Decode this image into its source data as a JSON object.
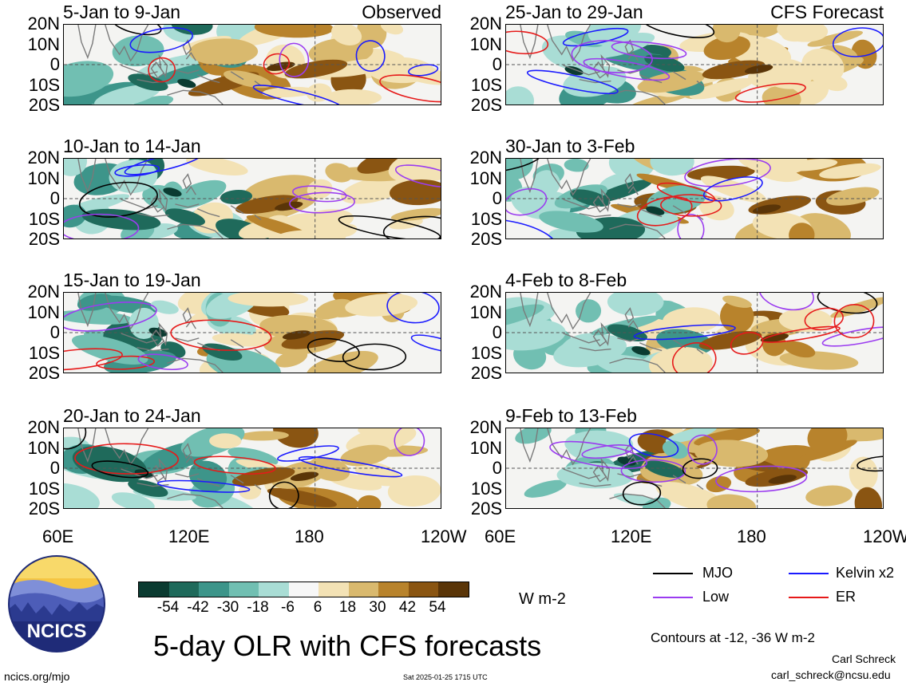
{
  "lat_labels": [
    "20N",
    "10N",
    "0",
    "10S",
    "20S"
  ],
  "lon_labels": [
    "60E",
    "120E",
    "180",
    "120W"
  ],
  "panels": [
    {
      "title": "5-Jan to 9-Jan",
      "tag": "Observed"
    },
    {
      "title": "25-Jan to 29-Jan",
      "tag": "CFS Forecast"
    },
    {
      "title": "10-Jan to 14-Jan",
      "tag": ""
    },
    {
      "title": "30-Jan to 3-Feb",
      "tag": ""
    },
    {
      "title": "15-Jan to 19-Jan",
      "tag": ""
    },
    {
      "title": "4-Feb to 8-Feb",
      "tag": ""
    },
    {
      "title": "20-Jan to 24-Jan",
      "tag": ""
    },
    {
      "title": "9-Feb to 13-Feb",
      "tag": ""
    }
  ],
  "colorbar": {
    "labels": [
      "-54",
      "-42",
      "-30",
      "-18",
      "-6",
      "6",
      "18",
      "30",
      "42",
      "54"
    ],
    "colors": [
      "#0b3b31",
      "#1f6a5b",
      "#3d958a",
      "#71bfb2",
      "#a9ddd5",
      "#f7f7f7",
      "#f3e2b5",
      "#d9b96e",
      "#b8832c",
      "#8a5512",
      "#5a3508"
    ],
    "units": "W m-2"
  },
  "legend": {
    "items": [
      {
        "label": "MJO",
        "color": "#000000"
      },
      {
        "label": "Kelvin x2",
        "color": "#1a1aff"
      },
      {
        "label": "Low",
        "color": "#9b3cf0"
      },
      {
        "label": "ER",
        "color": "#e61a1a"
      }
    ],
    "contours_note": "Contours at -12, -36 W m-2"
  },
  "title": "5-day OLR with CFS forecasts",
  "logo_text": "NCICS",
  "footer": {
    "url": "ncics.org/mjo",
    "timestamp": "Sat 2025-01-25 1715 UTC",
    "author": "Carl Schreck",
    "email": "carl_schreck@ncsu.edu"
  }
}
